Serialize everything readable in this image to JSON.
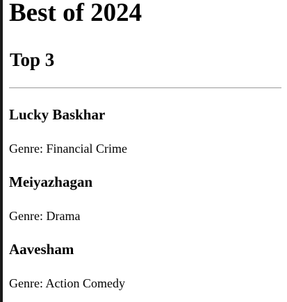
{
  "page": {
    "title": "Best of 2024"
  },
  "section": {
    "title": "Top 3"
  },
  "movies": [
    {
      "title": "Lucky Baskhar",
      "genre_text": "Genre: Financial Crime"
    },
    {
      "title": "Meiyazhagan",
      "genre_text": "Genre: Drama"
    },
    {
      "title": "Aavesham",
      "genre_text": "Genre: Action Comedy"
    }
  ]
}
